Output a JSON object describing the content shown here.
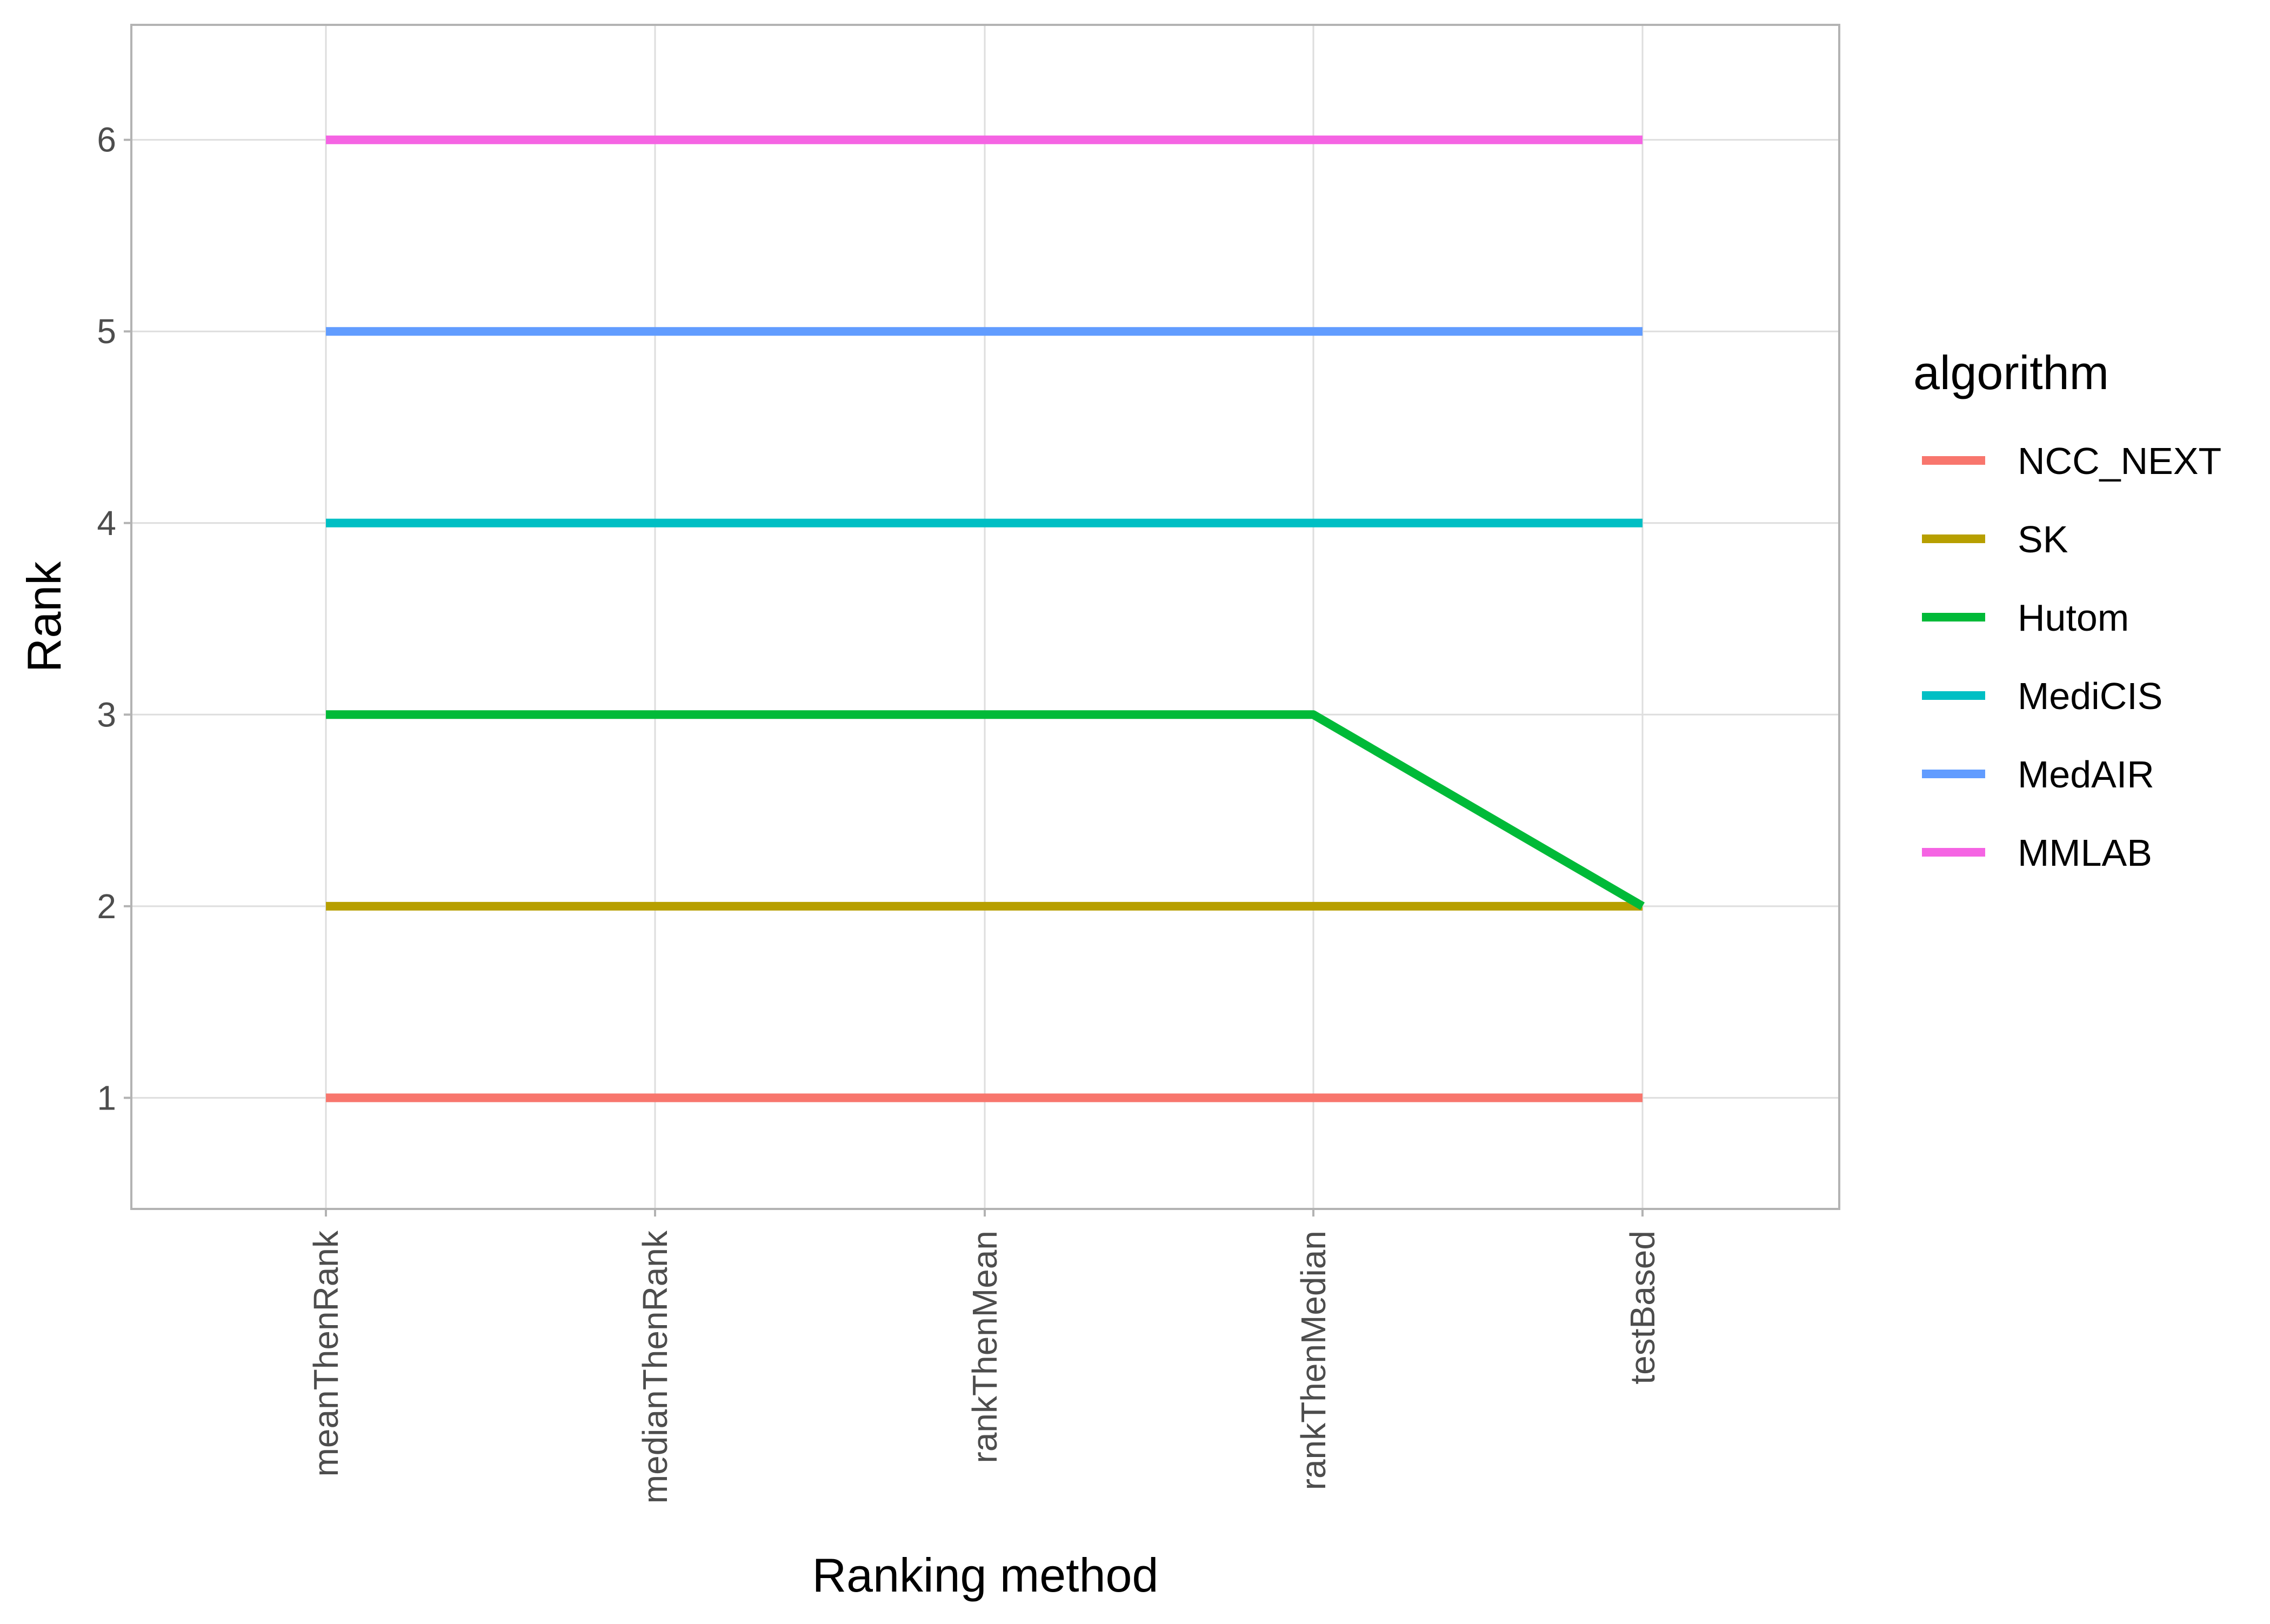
{
  "chart_data": {
    "type": "line",
    "title": "",
    "xlabel": "Ranking method",
    "ylabel": "Rank",
    "categories": [
      "meanThenRank",
      "medianThenRank",
      "rankThenMean",
      "rankThenMedian",
      "testBased"
    ],
    "ylim": [
      0.42,
      6.6
    ],
    "yticks": [
      1,
      2,
      3,
      4,
      5,
      6
    ],
    "grid": true,
    "legend": {
      "title": "algorithm",
      "placement": "right"
    },
    "series": [
      {
        "name": "NCC_NEXT",
        "color": "#F8766D",
        "values": [
          1,
          1,
          1,
          1,
          1
        ]
      },
      {
        "name": "SK",
        "color": "#B79F00",
        "values": [
          2,
          2,
          2,
          2,
          2
        ]
      },
      {
        "name": "Hutom",
        "color": "#00BA38",
        "values": [
          3,
          3,
          3,
          3,
          2
        ]
      },
      {
        "name": "MediCIS",
        "color": "#00BFC4",
        "values": [
          4,
          4,
          4,
          4,
          4
        ]
      },
      {
        "name": "MedAIR",
        "color": "#619CFF",
        "values": [
          5,
          5,
          5,
          5,
          5
        ]
      },
      {
        "name": "MMLAB",
        "color": "#F564E3",
        "values": [
          6,
          6,
          6,
          6,
          6
        ]
      }
    ]
  }
}
